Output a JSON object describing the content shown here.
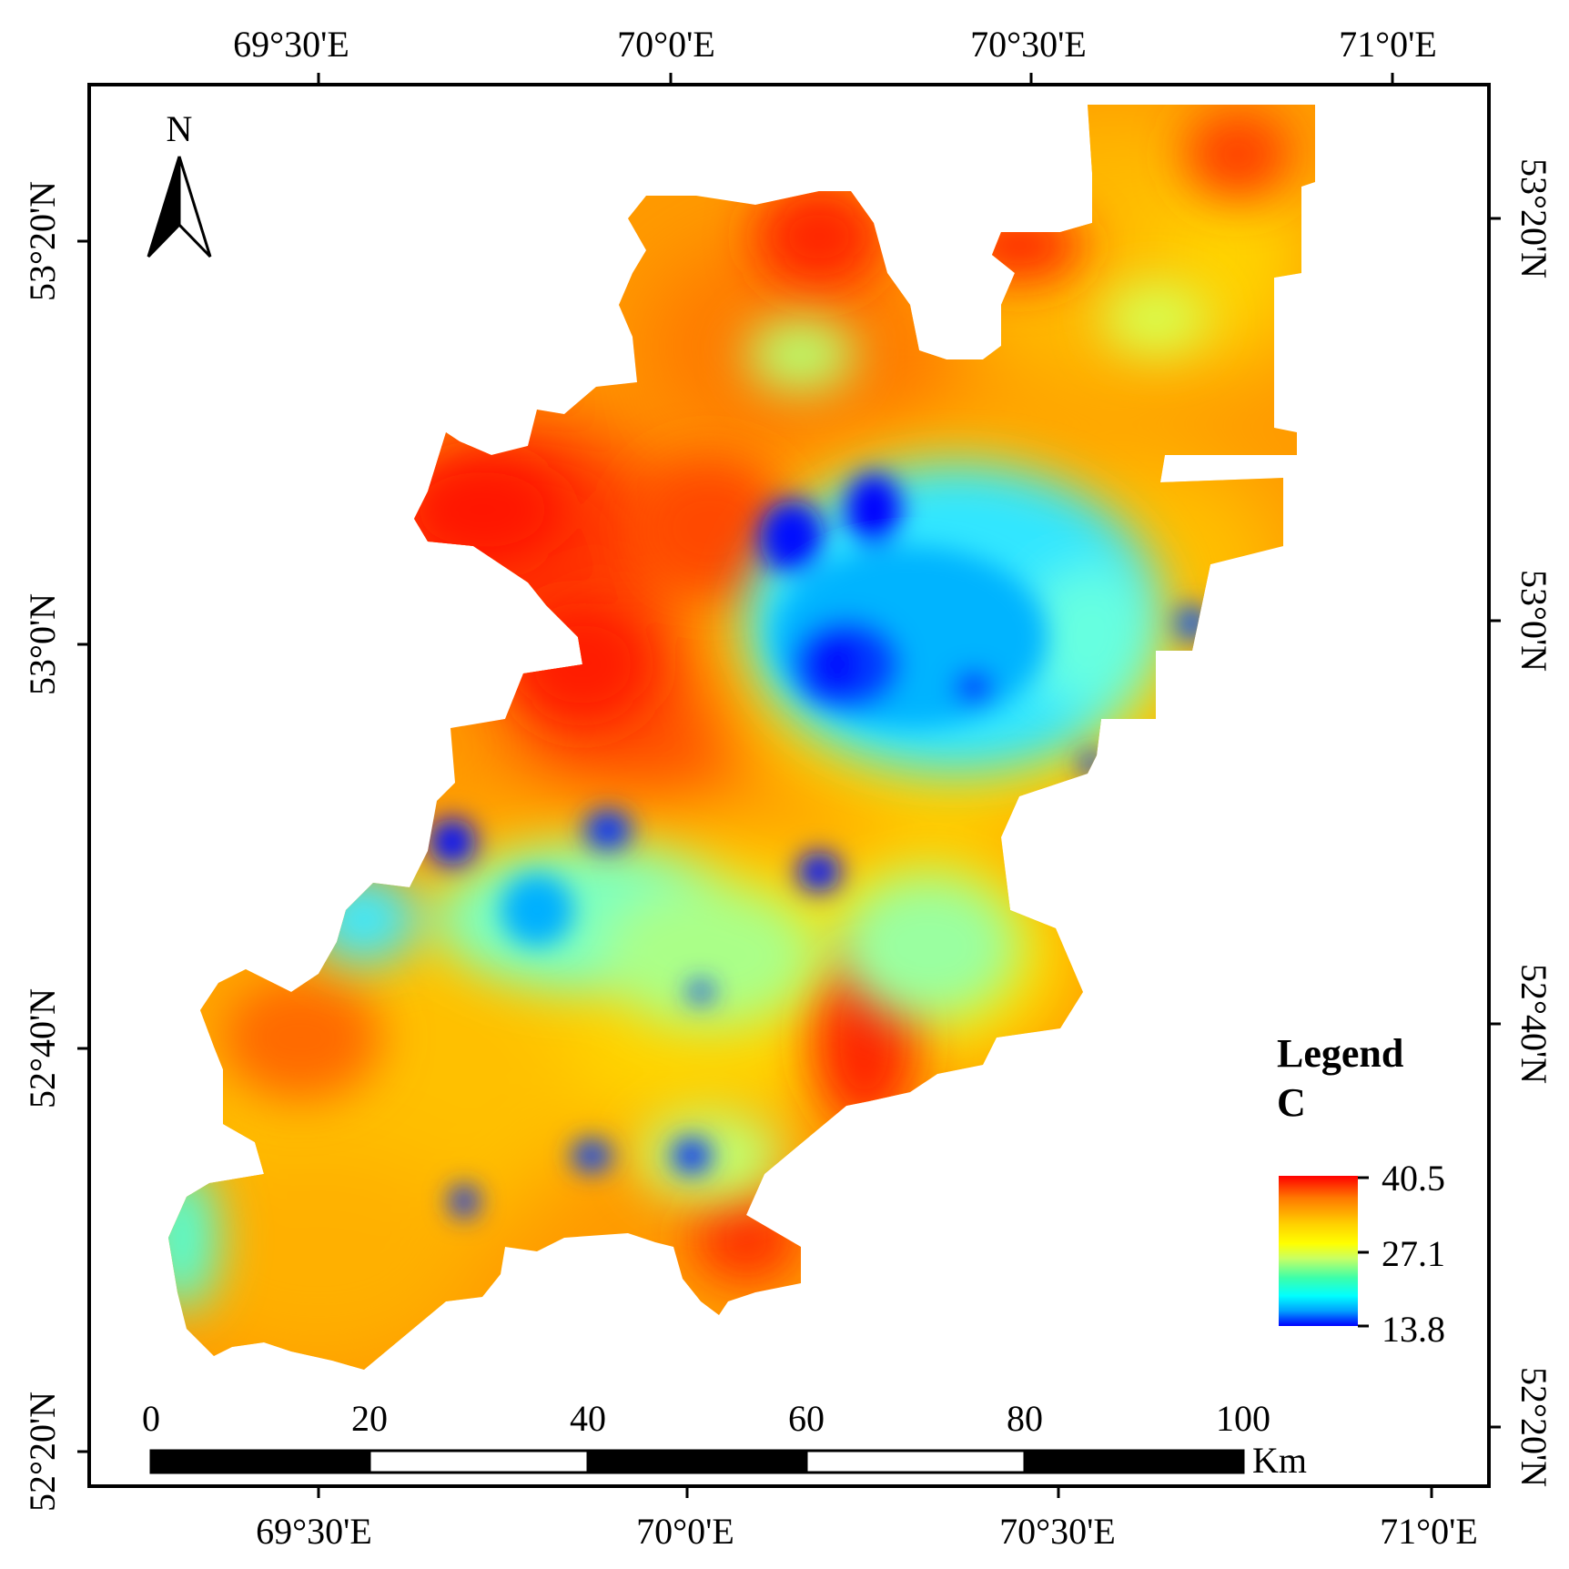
{
  "map": {
    "legend": {
      "title": "Legend",
      "field": "C",
      "max_label": "40.5",
      "mid_label": "27.1",
      "min_label": "13.8",
      "colors": [
        "#ff0000",
        "#ff7a00",
        "#ffd000",
        "#ffff00",
        "#c8ff64",
        "#3cffaa",
        "#00ffff",
        "#00a0ff",
        "#0000ff"
      ]
    },
    "north_arrow": {
      "label": "N"
    },
    "scale_bar": {
      "ticks": [
        "0",
        "20",
        "40",
        "60",
        "80",
        "100"
      ],
      "unit": "Km"
    },
    "graticule": {
      "top": [
        "69°30'E",
        "70°0'E",
        "70°30'E",
        "71°0'E"
      ],
      "bottom": [
        "69°30'E",
        "70°0'E",
        "70°30'E",
        "71°0'E"
      ],
      "left": [
        "53°20'N",
        "53°0'N",
        "52°40'N",
        "52°20'N"
      ],
      "right": [
        "53°20'N",
        "53°0'N",
        "52°40'N",
        "52°20'N"
      ]
    },
    "palette": {
      "red": "#ff2a00",
      "orange": "#ff8c00",
      "yellow": "#ffe600",
      "cyan": "#22e6ff",
      "blue": "#0022ff"
    }
  }
}
